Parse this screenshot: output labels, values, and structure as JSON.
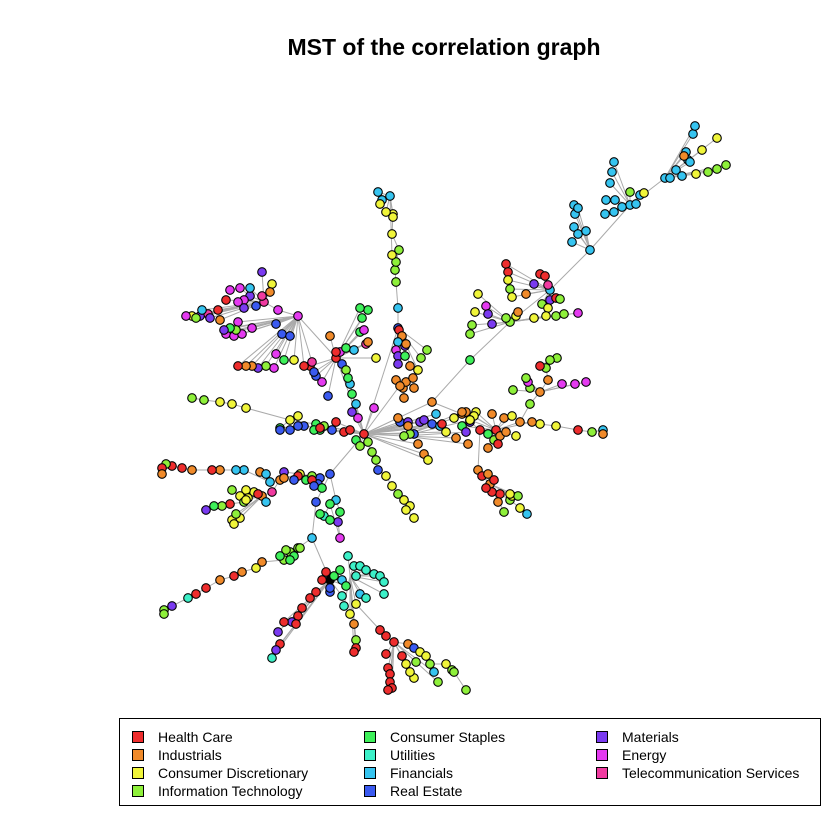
{
  "title": "MST of the correlation graph",
  "legend": {
    "items": [
      {
        "label": "Health Care",
        "color": "#ee2d2d"
      },
      {
        "label": "Industrials",
        "color": "#f08a2a"
      },
      {
        "label": "Consumer Discretionary",
        "color": "#f0f53a"
      },
      {
        "label": "Information Technology",
        "color": "#8ef03a"
      },
      {
        "label": "Consumer Staples",
        "color": "#3ef05a"
      },
      {
        "label": "Utilities",
        "color": "#3cf0c8"
      },
      {
        "label": "Financials",
        "color": "#36c4f0"
      },
      {
        "label": "Real Estate",
        "color": "#3a5af0"
      },
      {
        "label": "Materials",
        "color": "#7a3af0"
      },
      {
        "label": "Energy",
        "color": "#e43af0"
      },
      {
        "label": "Telecommunication Services",
        "color": "#f03aa0"
      }
    ]
  },
  "edge_color": "#aaaaaa"
}
